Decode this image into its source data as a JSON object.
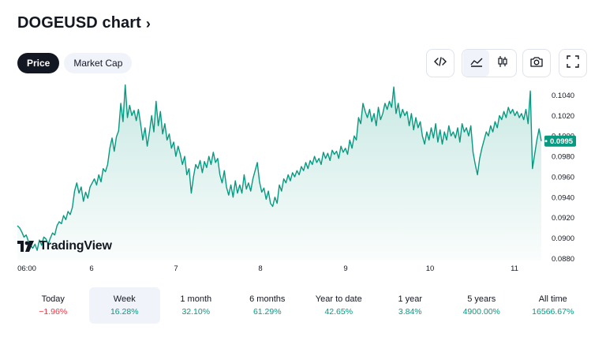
{
  "title": "DOGEUSD chart",
  "tabs": [
    {
      "label": "Price",
      "active": true
    },
    {
      "label": "Market Cap",
      "active": false
    }
  ],
  "toolbar": {
    "icons": [
      "embed-code-icon",
      "area-chart-icon",
      "candlestick-icon",
      "camera-icon",
      "fullscreen-icon"
    ]
  },
  "watermark": "TradingView",
  "colors": {
    "accent": "#089981",
    "negative": "#f23645",
    "text": "#131722"
  },
  "chart_data": {
    "type": "area",
    "x_ticks": [
      "06:00",
      "6",
      "7",
      "8",
      "9",
      "10",
      "11"
    ],
    "y_ticks": [
      "0.1040",
      "0.1020",
      "0.1000",
      "0.0980",
      "0.0960",
      "0.0940",
      "0.0920",
      "0.0900",
      "0.0880"
    ],
    "ylim": [
      0.0878,
      0.1052
    ],
    "last_price": "0.0995",
    "series": [
      {
        "values": [
          0.0912,
          0.091,
          0.0906,
          0.0901,
          0.0903,
          0.0897,
          0.0893,
          0.089,
          0.0894,
          0.0888,
          0.0898,
          0.0893,
          0.0901,
          0.0899,
          0.0894,
          0.09,
          0.0905,
          0.0903,
          0.0912,
          0.0916,
          0.0914,
          0.0922,
          0.0918,
          0.0926,
          0.0923,
          0.093,
          0.0946,
          0.0954,
          0.0944,
          0.095,
          0.0936,
          0.0945,
          0.0939,
          0.095,
          0.0954,
          0.0958,
          0.0952,
          0.0962,
          0.0955,
          0.0968,
          0.0965,
          0.0972,
          0.0988,
          0.0998,
          0.0985,
          0.0999,
          0.1005,
          0.1032,
          0.1014,
          0.105,
          0.1018,
          0.103,
          0.102,
          0.1025,
          0.1015,
          0.1026,
          0.1012,
          0.0996,
          0.1008,
          0.099,
          0.1004,
          0.102,
          0.1004,
          0.1034,
          0.101,
          0.1024,
          0.1002,
          0.1012,
          0.0996,
          0.1002,
          0.0988,
          0.0994,
          0.098,
          0.099,
          0.0982,
          0.0972,
          0.098,
          0.0962,
          0.0968,
          0.0944,
          0.096,
          0.0972,
          0.0968,
          0.0976,
          0.0964,
          0.0975,
          0.0969,
          0.098,
          0.0972,
          0.0984,
          0.0974,
          0.0978,
          0.0962,
          0.0954,
          0.0966,
          0.095,
          0.0942,
          0.0952,
          0.094,
          0.0956,
          0.0944,
          0.0952,
          0.0944,
          0.0962,
          0.0948,
          0.0954,
          0.0946,
          0.0958,
          0.0966,
          0.0974,
          0.0955,
          0.0945,
          0.0949,
          0.0938,
          0.0946,
          0.0934,
          0.0931,
          0.094,
          0.0934,
          0.0952,
          0.0946,
          0.0958,
          0.0954,
          0.0962,
          0.0956,
          0.0964,
          0.096,
          0.0966,
          0.0962,
          0.097,
          0.0966,
          0.0974,
          0.0968,
          0.0976,
          0.0972,
          0.098,
          0.0974,
          0.0978,
          0.0972,
          0.0984,
          0.0978,
          0.0983,
          0.0976,
          0.0986,
          0.0982,
          0.0985,
          0.0978,
          0.099,
          0.0984,
          0.0988,
          0.0982,
          0.0996,
          0.0988,
          0.1,
          0.0996,
          0.1018,
          0.1012,
          0.1032,
          0.1024,
          0.1018,
          0.1026,
          0.1014,
          0.1022,
          0.101,
          0.1028,
          0.1016,
          0.1022,
          0.1032,
          0.1026,
          0.1034,
          0.1028,
          0.1048,
          0.1022,
          0.1032,
          0.1018,
          0.1026,
          0.102,
          0.1024,
          0.101,
          0.1022,
          0.1006,
          0.1018,
          0.1008,
          0.1014,
          0.1,
          0.0992,
          0.1004,
          0.0996,
          0.1008,
          0.0998,
          0.1012,
          0.0994,
          0.1006,
          0.0992,
          0.1004,
          0.0996,
          0.101,
          0.1,
          0.1004,
          0.0998,
          0.1008,
          0.0994,
          0.1012,
          0.1004,
          0.1008,
          0.1,
          0.101,
          0.0984,
          0.0972,
          0.0962,
          0.0978,
          0.0988,
          0.0996,
          0.1004,
          0.1,
          0.101,
          0.1004,
          0.1014,
          0.1008,
          0.102,
          0.1016,
          0.1024,
          0.1018,
          0.1028,
          0.1022,
          0.1026,
          0.102,
          0.1024,
          0.1018,
          0.1022,
          0.1016,
          0.1026,
          0.1012,
          0.1044,
          0.0968,
          0.0982,
          0.0996,
          0.1007,
          0.0995
        ]
      }
    ]
  },
  "periods": [
    {
      "label": "Today",
      "value": "−1.96%",
      "sign": "neg",
      "selected": false
    },
    {
      "label": "Week",
      "value": "16.28%",
      "sign": "pos",
      "selected": true
    },
    {
      "label": "1 month",
      "value": "32.10%",
      "sign": "pos",
      "selected": false
    },
    {
      "label": "6 months",
      "value": "61.29%",
      "sign": "pos",
      "selected": false
    },
    {
      "label": "Year to date",
      "value": "42.65%",
      "sign": "pos",
      "selected": false
    },
    {
      "label": "1 year",
      "value": "3.84%",
      "sign": "pos",
      "selected": false
    },
    {
      "label": "5 years",
      "value": "4900.00%",
      "sign": "pos",
      "selected": false
    },
    {
      "label": "All time",
      "value": "16566.67%",
      "sign": "pos",
      "selected": false
    }
  ]
}
